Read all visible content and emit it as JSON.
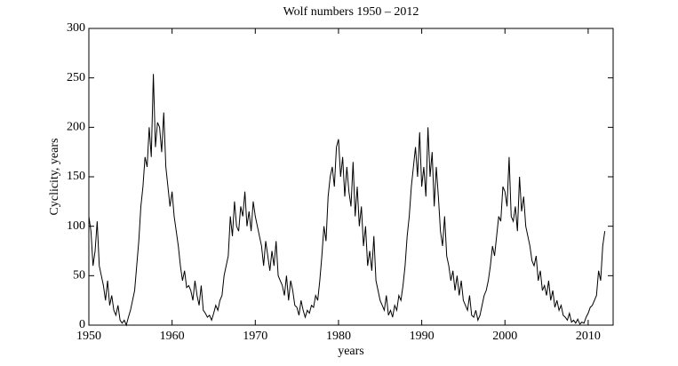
{
  "chart_data": {
    "type": "line",
    "title": "Wolf numbers 1950 – 2012",
    "xlabel": "years",
    "ylabel": "Cyclicity, years",
    "color": "#000000",
    "x": [
      1950,
      1950.25,
      1950.5,
      1950.75,
      1951,
      1951.25,
      1951.5,
      1951.75,
      1952,
      1952.25,
      1952.5,
      1952.75,
      1953,
      1953.25,
      1953.5,
      1953.75,
      1954,
      1954.25,
      1954.5,
      1954.75,
      1955,
      1955.25,
      1955.5,
      1955.75,
      1956,
      1956.25,
      1956.5,
      1956.75,
      1957,
      1957.25,
      1957.5,
      1957.75,
      1958,
      1958.25,
      1958.5,
      1958.75,
      1959,
      1959.25,
      1959.5,
      1959.75,
      1960,
      1960.25,
      1960.5,
      1960.75,
      1961,
      1961.25,
      1961.5,
      1961.75,
      1962,
      1962.25,
      1962.5,
      1962.75,
      1963,
      1963.25,
      1963.5,
      1963.75,
      1964,
      1964.25,
      1964.5,
      1964.75,
      1965,
      1965.25,
      1965.5,
      1965.75,
      1966,
      1966.25,
      1966.5,
      1966.75,
      1967,
      1967.25,
      1967.5,
      1967.75,
      1968,
      1968.25,
      1968.5,
      1968.75,
      1969,
      1969.25,
      1969.5,
      1969.75,
      1970,
      1970.25,
      1970.5,
      1970.75,
      1971,
      1971.25,
      1971.5,
      1971.75,
      1972,
      1972.25,
      1972.5,
      1972.75,
      1973,
      1973.25,
      1973.5,
      1973.75,
      1974,
      1974.25,
      1974.5,
      1974.75,
      1975,
      1975.25,
      1975.5,
      1975.75,
      1976,
      1976.25,
      1976.5,
      1976.75,
      1977,
      1977.25,
      1977.5,
      1977.75,
      1978,
      1978.25,
      1978.5,
      1978.75,
      1979,
      1979.25,
      1979.5,
      1979.75,
      1980,
      1980.25,
      1980.5,
      1980.75,
      1981,
      1981.25,
      1981.5,
      1981.75,
      1982,
      1982.25,
      1982.5,
      1982.75,
      1983,
      1983.25,
      1983.5,
      1983.75,
      1984,
      1984.25,
      1984.5,
      1984.75,
      1985,
      1985.25,
      1985.5,
      1985.75,
      1986,
      1986.25,
      1986.5,
      1986.75,
      1987,
      1987.25,
      1987.5,
      1987.75,
      1988,
      1988.25,
      1988.5,
      1988.75,
      1989,
      1989.25,
      1989.5,
      1989.75,
      1990,
      1990.25,
      1990.5,
      1990.75,
      1991,
      1991.25,
      1991.5,
      1991.75,
      1992,
      1992.25,
      1992.5,
      1992.75,
      1993,
      1993.25,
      1993.5,
      1993.75,
      1994,
      1994.25,
      1994.5,
      1994.75,
      1995,
      1995.25,
      1995.5,
      1995.75,
      1996,
      1996.25,
      1996.5,
      1996.75,
      1997,
      1997.25,
      1997.5,
      1997.75,
      1998,
      1998.25,
      1998.5,
      1998.75,
      1999,
      1999.25,
      1999.5,
      1999.75,
      2000,
      2000.25,
      2000.5,
      2000.75,
      2001,
      2001.25,
      2001.5,
      2001.75,
      2002,
      2002.25,
      2002.5,
      2002.75,
      2003,
      2003.25,
      2003.5,
      2003.75,
      2004,
      2004.25,
      2004.5,
      2004.75,
      2005,
      2005.25,
      2005.5,
      2005.75,
      2006,
      2006.25,
      2006.5,
      2006.75,
      2007,
      2007.25,
      2007.5,
      2007.75,
      2008,
      2008.25,
      2008.5,
      2008.75,
      2009,
      2009.25,
      2009.5,
      2009.75,
      2010,
      2010.25,
      2010.5,
      2010.75,
      2011,
      2011.25,
      2011.5,
      2011.75,
      2012
    ],
    "values": [
      110,
      95,
      60,
      75,
      105,
      60,
      50,
      40,
      25,
      45,
      20,
      30,
      15,
      10,
      20,
      5,
      2,
      5,
      0,
      8,
      15,
      25,
      35,
      60,
      85,
      120,
      140,
      170,
      160,
      200,
      170,
      254,
      180,
      205,
      200,
      175,
      215,
      160,
      140,
      120,
      135,
      110,
      95,
      80,
      60,
      45,
      55,
      38,
      40,
      35,
      25,
      45,
      30,
      20,
      40,
      15,
      12,
      8,
      10,
      5,
      12,
      20,
      15,
      25,
      30,
      50,
      60,
      70,
      110,
      90,
      125,
      100,
      95,
      120,
      110,
      135,
      100,
      115,
      95,
      125,
      110,
      100,
      90,
      80,
      60,
      85,
      70,
      55,
      75,
      60,
      85,
      50,
      45,
      40,
      30,
      50,
      25,
      45,
      35,
      20,
      18,
      10,
      25,
      15,
      8,
      15,
      12,
      20,
      18,
      30,
      25,
      45,
      70,
      100,
      85,
      130,
      150,
      160,
      140,
      180,
      188,
      150,
      170,
      130,
      160,
      135,
      120,
      165,
      110,
      140,
      100,
      120,
      80,
      100,
      60,
      75,
      55,
      90,
      45,
      35,
      25,
      20,
      15,
      30,
      10,
      15,
      8,
      20,
      15,
      30,
      25,
      40,
      60,
      90,
      110,
      140,
      160,
      180,
      150,
      195,
      140,
      160,
      130,
      200,
      150,
      175,
      120,
      160,
      130,
      95,
      80,
      110,
      70,
      60,
      45,
      55,
      35,
      50,
      30,
      45,
      25,
      20,
      15,
      30,
      10,
      8,
      15,
      5,
      10,
      20,
      30,
      35,
      45,
      60,
      80,
      70,
      90,
      110,
      105,
      140,
      135,
      120,
      170,
      110,
      105,
      120,
      95,
      150,
      115,
      130,
      100,
      90,
      80,
      65,
      60,
      70,
      45,
      55,
      35,
      40,
      30,
      45,
      25,
      35,
      18,
      25,
      15,
      20,
      10,
      8,
      5,
      12,
      3,
      5,
      2,
      6,
      1,
      3,
      2,
      8,
      12,
      18,
      20,
      25,
      30,
      55,
      45,
      80,
      95
    ],
    "xlim": [
      1950,
      2013
    ],
    "xticks": [
      1950,
      1960,
      1970,
      1980,
      1990,
      2000,
      2010
    ],
    "ylim": [
      0,
      300
    ],
    "yticks": [
      0,
      50,
      100,
      150,
      200,
      250,
      300
    ],
    "grid": false
  }
}
